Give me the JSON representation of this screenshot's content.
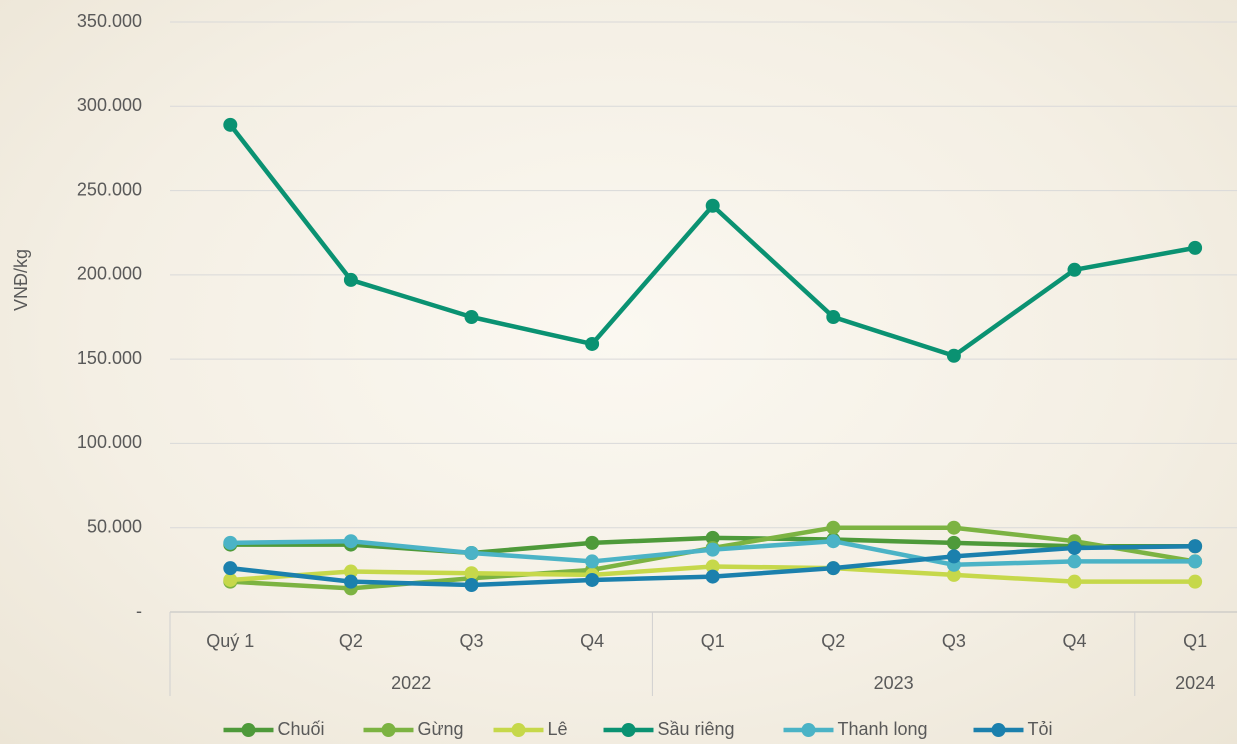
{
  "chart_data": {
    "type": "line",
    "y_label": "VNĐ/kg",
    "categories": [
      "Quý 1",
      "Q2",
      "Q3",
      "Q4",
      "Q1",
      "Q2",
      "Q3",
      "Q4",
      "Q1"
    ],
    "years": [
      "2022",
      null,
      null,
      null,
      "2023",
      null,
      null,
      null,
      "2024"
    ],
    "ylim": [
      0,
      350000
    ],
    "yticks": [
      {
        "value": 0,
        "label": "-"
      },
      {
        "value": 50000,
        "label": "50.000"
      },
      {
        "value": 100000,
        "label": "100.000"
      },
      {
        "value": 150000,
        "label": "150.000"
      },
      {
        "value": 200000,
        "label": "200.000"
      },
      {
        "value": 250000,
        "label": "250.000"
      },
      {
        "value": 300000,
        "label": "300.000"
      },
      {
        "value": 350000,
        "label": "350.000"
      }
    ],
    "grid": true,
    "legend": "bottom",
    "series": [
      {
        "name": "Chuối",
        "color": "#4e9a3a",
        "values": [
          40000,
          40000,
          35000,
          41000,
          44000,
          43000,
          41000,
          39000,
          39000
        ]
      },
      {
        "name": "Gừng",
        "color": "#7cb342",
        "values": [
          18000,
          14000,
          20000,
          25000,
          38000,
          50000,
          50000,
          42000,
          30000
        ]
      },
      {
        "name": "Lê",
        "color": "#c6d84a",
        "values": [
          19000,
          24000,
          23000,
          22000,
          27000,
          26000,
          22000,
          18000,
          18000
        ]
      },
      {
        "name": "Sầu riêng",
        "color": "#0a9272",
        "values": [
          289000,
          197000,
          175000,
          159000,
          241000,
          175000,
          152000,
          203000,
          216000
        ]
      },
      {
        "name": "Thanh long",
        "color": "#4bb3c6",
        "values": [
          41000,
          42000,
          35000,
          30000,
          37000,
          42000,
          28000,
          30000,
          30000
        ]
      },
      {
        "name": "Tỏi",
        "color": "#1b80ad",
        "values": [
          26000,
          18000,
          16000,
          19000,
          21000,
          26000,
          33000,
          38000,
          39000
        ]
      }
    ]
  }
}
